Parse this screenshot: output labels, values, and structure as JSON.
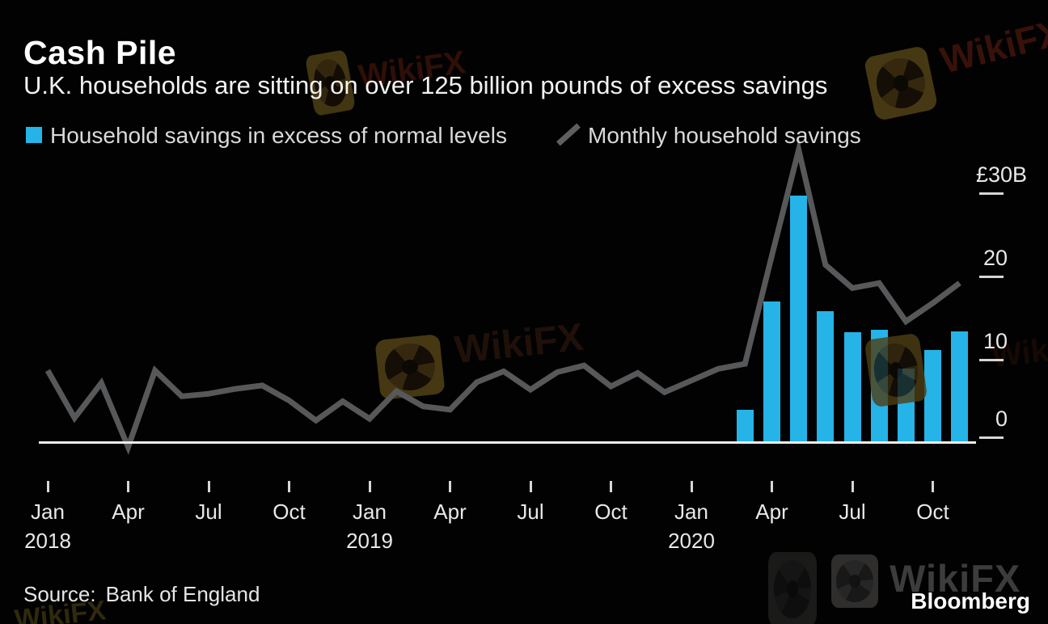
{
  "header": {
    "title": "Cash Pile",
    "subtitle": "U.K. households are sitting on over 125 billion pounds of excess savings"
  },
  "legend": [
    {
      "label": "Household savings in excess of normal levels",
      "swatch": "square",
      "color": "#25b3e8"
    },
    {
      "label": "Monthly household savings",
      "swatch": "line",
      "color": "#57585a"
    }
  ],
  "footer": {
    "source_label": "Source:",
    "source_value": "Bank of England"
  },
  "branding": {
    "bloomberg_logo_text": "Bloomberg",
    "watermark_text": "WikiFX"
  },
  "colors": {
    "background": "#020202",
    "bar": "#25b3e8",
    "line": "#57585a",
    "axis": "#ededed",
    "tick": "#d6d6d6"
  },
  "chart_data": {
    "type": "bar+line",
    "unit": "billions of pounds",
    "title": "Cash Pile",
    "subtitle": "U.K. households are sitting on over 125 billion pounds of excess savings",
    "grid": false,
    "legend_position": "top",
    "y_axis_side": "right",
    "ylim": [
      -1,
      36
    ],
    "months": [
      "Jan 2018",
      "Feb 2018",
      "Mar 2018",
      "Apr 2018",
      "May 2018",
      "Jun 2018",
      "Jul 2018",
      "Aug 2018",
      "Sep 2018",
      "Oct 2018",
      "Nov 2018",
      "Dec 2018",
      "Jan 2019",
      "Feb 2019",
      "Mar 2019",
      "Apr 2019",
      "May 2019",
      "Jun 2019",
      "Jul 2019",
      "Aug 2019",
      "Sep 2019",
      "Oct 2019",
      "Nov 2019",
      "Dec 2019",
      "Jan 2020",
      "Feb 2020",
      "Mar 2020",
      "Apr 2020",
      "May 2020",
      "Jun 2020",
      "Jul 2020",
      "Aug 2020",
      "Sep 2020",
      "Oct 2020",
      "Nov 2020"
    ],
    "series": [
      {
        "name": "Household savings in excess of normal levels",
        "type": "bar",
        "color": "#25b3e8",
        "start_month": "Mar 2020",
        "values": [
          4.0,
          17.0,
          29.7,
          15.8,
          13.3,
          13.6,
          8.9,
          11.2,
          13.4
        ]
      },
      {
        "name": "Monthly household savings",
        "type": "line",
        "color": "#57585a",
        "start_month": "Jan 2018",
        "values": [
          8.7,
          3.0,
          7.2,
          -0.5,
          8.7,
          5.6,
          5.9,
          6.5,
          6.9,
          5.1,
          2.7,
          5.0,
          2.9,
          6.2,
          4.4,
          4.0,
          7.3,
          8.6,
          6.4,
          8.5,
          9.3,
          6.8,
          8.4,
          6.1,
          7.5,
          8.9,
          9.5,
          22.5,
          35.2,
          21.4,
          18.6,
          19.2,
          14.6,
          16.8,
          19.2
        ]
      }
    ],
    "y_ticks": [
      {
        "value": 30,
        "label": "£30B"
      },
      {
        "value": 20,
        "label": "20"
      },
      {
        "value": 10,
        "label": "10"
      },
      {
        "value": 0,
        "label": "0"
      }
    ],
    "x_ticks": [
      {
        "index": 0,
        "month": "Jan",
        "year": "2018"
      },
      {
        "index": 3,
        "month": "Apr"
      },
      {
        "index": 6,
        "month": "Jul"
      },
      {
        "index": 9,
        "month": "Oct"
      },
      {
        "index": 12,
        "month": "Jan",
        "year": "2019"
      },
      {
        "index": 15,
        "month": "Apr"
      },
      {
        "index": 18,
        "month": "Jul"
      },
      {
        "index": 21,
        "month": "Oct"
      },
      {
        "index": 24,
        "month": "Jan",
        "year": "2020"
      },
      {
        "index": 27,
        "month": "Apr"
      },
      {
        "index": 30,
        "month": "Jul"
      },
      {
        "index": 33,
        "month": "Oct"
      }
    ]
  }
}
